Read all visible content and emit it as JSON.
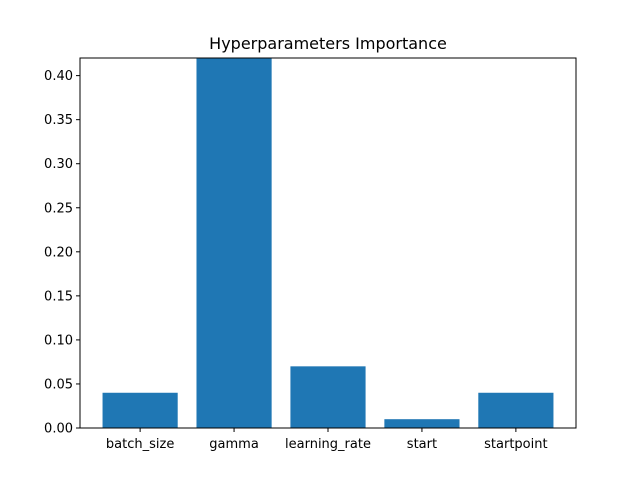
{
  "chart_data": {
    "type": "bar",
    "title": "Hyperparameters Importance",
    "xlabel": "",
    "ylabel": "",
    "categories": [
      "batch_size",
      "gamma",
      "learning_rate",
      "start",
      "startpoint"
    ],
    "values": [
      0.04,
      0.42,
      0.07,
      0.01,
      0.04
    ],
    "ylim": [
      0,
      0.42
    ],
    "yticks": [
      "0.00",
      "0.05",
      "0.10",
      "0.15",
      "0.20",
      "0.25",
      "0.30",
      "0.35",
      "0.40"
    ],
    "grid": false,
    "bar_color": "#1f77b4"
  }
}
